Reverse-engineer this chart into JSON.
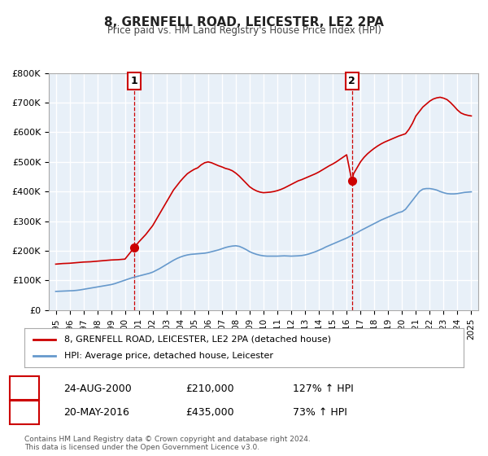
{
  "title": "8, GRENFELL ROAD, LEICESTER, LE2 2PA",
  "subtitle": "Price paid vs. HM Land Registry's House Price Index (HPI)",
  "background_color": "#ffffff",
  "plot_bg_color": "#e8f0f8",
  "grid_color": "#ffffff",
  "ylim": [
    0,
    800000
  ],
  "yticks": [
    0,
    100000,
    200000,
    300000,
    400000,
    500000,
    600000,
    700000,
    800000
  ],
  "ytick_labels": [
    "£0",
    "£100K",
    "£200K",
    "£300K",
    "£400K",
    "£500K",
    "£600K",
    "£700K",
    "£800K"
  ],
  "xlim_start": 1994.5,
  "xlim_end": 2025.5,
  "xticks": [
    1995,
    1996,
    1997,
    1998,
    1999,
    2000,
    2001,
    2002,
    2003,
    2004,
    2005,
    2006,
    2007,
    2008,
    2009,
    2010,
    2011,
    2012,
    2013,
    2014,
    2015,
    2016,
    2017,
    2018,
    2019,
    2020,
    2021,
    2022,
    2023,
    2024,
    2025
  ],
  "red_line_color": "#cc0000",
  "blue_line_color": "#6699cc",
  "marker1_x": 2000.65,
  "marker1_y": 210000,
  "marker2_x": 2016.38,
  "marker2_y": 435000,
  "vline1_x": 2000.65,
  "vline2_x": 2016.38,
  "legend_label_red": "8, GRENFELL ROAD, LEICESTER, LE2 2PA (detached house)",
  "legend_label_blue": "HPI: Average price, detached house, Leicester",
  "table_row1_num": "1",
  "table_row1_date": "24-AUG-2000",
  "table_row1_price": "£210,000",
  "table_row1_hpi": "127% ↑ HPI",
  "table_row2_num": "2",
  "table_row2_date": "20-MAY-2016",
  "table_row2_price": "£435,000",
  "table_row2_hpi": "73% ↑ HPI",
  "footer_text": "Contains HM Land Registry data © Crown copyright and database right 2024.\nThis data is licensed under the Open Government Licence v3.0.",
  "hpi_data_x": [
    1995.0,
    1995.25,
    1995.5,
    1995.75,
    1996.0,
    1996.25,
    1996.5,
    1996.75,
    1997.0,
    1997.25,
    1997.5,
    1997.75,
    1998.0,
    1998.25,
    1998.5,
    1998.75,
    1999.0,
    1999.25,
    1999.5,
    1999.75,
    2000.0,
    2000.25,
    2000.5,
    2000.75,
    2001.0,
    2001.25,
    2001.5,
    2001.75,
    2002.0,
    2002.25,
    2002.5,
    2002.75,
    2003.0,
    2003.25,
    2003.5,
    2003.75,
    2004.0,
    2004.25,
    2004.5,
    2004.75,
    2005.0,
    2005.25,
    2005.5,
    2005.75,
    2006.0,
    2006.25,
    2006.5,
    2006.75,
    2007.0,
    2007.25,
    2007.5,
    2007.75,
    2008.0,
    2008.25,
    2008.5,
    2008.75,
    2009.0,
    2009.25,
    2009.5,
    2009.75,
    2010.0,
    2010.25,
    2010.5,
    2010.75,
    2011.0,
    2011.25,
    2011.5,
    2011.75,
    2012.0,
    2012.25,
    2012.5,
    2012.75,
    2013.0,
    2013.25,
    2013.5,
    2013.75,
    2014.0,
    2014.25,
    2014.5,
    2014.75,
    2015.0,
    2015.25,
    2015.5,
    2015.75,
    2016.0,
    2016.25,
    2016.5,
    2016.75,
    2017.0,
    2017.25,
    2017.5,
    2017.75,
    2018.0,
    2018.25,
    2018.5,
    2018.75,
    2019.0,
    2019.25,
    2019.5,
    2019.75,
    2020.0,
    2020.25,
    2020.5,
    2020.75,
    2021.0,
    2021.25,
    2021.5,
    2021.75,
    2022.0,
    2022.25,
    2022.5,
    2022.75,
    2023.0,
    2023.25,
    2023.5,
    2023.75,
    2024.0,
    2024.25,
    2024.5,
    2024.75,
    2025.0
  ],
  "hpi_data_y": [
    63000,
    63500,
    64000,
    64500,
    65000,
    65500,
    66500,
    68000,
    70000,
    72000,
    74000,
    76000,
    78000,
    80000,
    82000,
    84000,
    86000,
    89000,
    93000,
    97000,
    101000,
    105000,
    109000,
    112000,
    115000,
    118000,
    121000,
    124000,
    128000,
    134000,
    140000,
    147000,
    154000,
    161000,
    168000,
    174000,
    179000,
    183000,
    186000,
    188000,
    189000,
    190000,
    191000,
    192000,
    194000,
    197000,
    200000,
    203000,
    207000,
    211000,
    214000,
    216000,
    217000,
    215000,
    210000,
    204000,
    197000,
    192000,
    188000,
    185000,
    183000,
    182000,
    182000,
    182000,
    182000,
    182500,
    183000,
    182500,
    182000,
    182500,
    183000,
    184000,
    186000,
    189000,
    193000,
    197000,
    202000,
    207000,
    213000,
    218000,
    223000,
    228000,
    233000,
    238000,
    243000,
    249000,
    255000,
    261000,
    268000,
    274000,
    280000,
    286000,
    292000,
    298000,
    304000,
    309000,
    314000,
    319000,
    324000,
    329000,
    332000,
    340000,
    355000,
    370000,
    385000,
    400000,
    408000,
    410000,
    410000,
    408000,
    405000,
    400000,
    396000,
    393000,
    392000,
    392000,
    393000,
    395000,
    397000,
    398000,
    399000
  ],
  "red_data_x": [
    1995.0,
    1995.5,
    1996.0,
    1996.5,
    1997.0,
    1997.5,
    1998.0,
    1998.5,
    1999.0,
    1999.5,
    2000.0,
    2000.65,
    2001.0,
    2001.5,
    2002.0,
    2002.5,
    2003.0,
    2003.25,
    2003.5,
    2003.75,
    2004.0,
    2004.25,
    2004.5,
    2004.75,
    2005.0,
    2005.25,
    2005.5,
    2005.75,
    2006.0,
    2006.25,
    2006.5,
    2006.75,
    2007.0,
    2007.25,
    2007.5,
    2007.75,
    2008.0,
    2008.25,
    2008.5,
    2008.75,
    2009.0,
    2009.25,
    2009.5,
    2009.75,
    2010.0,
    2010.25,
    2010.5,
    2010.75,
    2011.0,
    2011.25,
    2011.5,
    2011.75,
    2012.0,
    2012.25,
    2012.5,
    2012.75,
    2013.0,
    2013.25,
    2013.5,
    2013.75,
    2014.0,
    2014.25,
    2014.5,
    2014.75,
    2015.0,
    2015.25,
    2015.5,
    2015.75,
    2016.0,
    2016.38,
    2016.5,
    2016.75,
    2017.0,
    2017.25,
    2017.5,
    2017.75,
    2018.0,
    2018.25,
    2018.5,
    2018.75,
    2019.0,
    2019.25,
    2019.5,
    2019.75,
    2020.0,
    2020.25,
    2020.5,
    2020.75,
    2021.0,
    2021.25,
    2021.5,
    2021.75,
    2022.0,
    2022.25,
    2022.5,
    2022.75,
    2023.0,
    2023.25,
    2023.5,
    2023.75,
    2024.0,
    2024.25,
    2024.5,
    2024.75,
    2025.0
  ],
  "red_data_y": [
    155000,
    157000,
    158000,
    160000,
    162000,
    163000,
    165000,
    167000,
    169000,
    170000,
    172000,
    210000,
    230000,
    255000,
    285000,
    325000,
    365000,
    385000,
    405000,
    420000,
    435000,
    448000,
    460000,
    468000,
    475000,
    480000,
    490000,
    497000,
    500000,
    497000,
    492000,
    487000,
    483000,
    478000,
    475000,
    470000,
    462000,
    452000,
    440000,
    428000,
    416000,
    408000,
    402000,
    398000,
    396000,
    397000,
    398000,
    400000,
    403000,
    407000,
    412000,
    418000,
    424000,
    430000,
    436000,
    440000,
    445000,
    450000,
    455000,
    460000,
    466000,
    473000,
    480000,
    487000,
    493000,
    500000,
    508000,
    516000,
    524000,
    435000,
    460000,
    480000,
    500000,
    515000,
    527000,
    537000,
    546000,
    554000,
    561000,
    567000,
    572000,
    577000,
    582000,
    587000,
    591000,
    595000,
    610000,
    630000,
    655000,
    670000,
    685000,
    695000,
    705000,
    712000,
    716000,
    718000,
    715000,
    710000,
    700000,
    688000,
    675000,
    665000,
    660000,
    657000,
    655000
  ]
}
